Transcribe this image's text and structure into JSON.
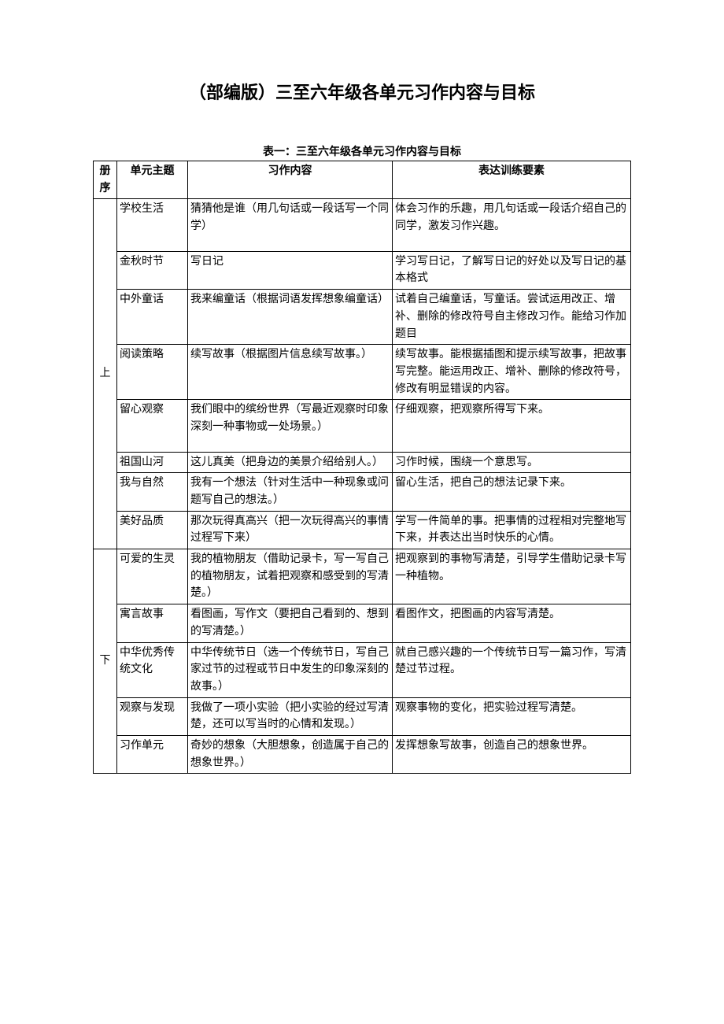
{
  "title": "（部编版）三至六年级各单元习作内容与目标",
  "subtitle": "表一：三至六年级各单元习作内容与目标",
  "headers": {
    "volume": "册序",
    "theme": "单元主题",
    "content": "习作内容",
    "element": "表达训练要素"
  },
  "table_style": {
    "border_color": "#000000",
    "background_color": "#ffffff",
    "text_color": "#000000",
    "title_fontsize": 22,
    "subtitle_fontsize": 14,
    "cell_fontsize": 14,
    "line_height": 1.55,
    "col_widths": {
      "volume": 30,
      "theme": 90,
      "content": 260
    }
  },
  "volumes": [
    {
      "label": "上",
      "rows": [
        {
          "theme": "学校生活",
          "content": "猜猜他是谁（用几句话或一段话写一个同学）",
          "element": "体会习作的乐趣，用几句话或一段话介绍自己的同学，激发习作兴趣。",
          "spacer": true
        },
        {
          "theme": "金秋时节",
          "content": "写日记",
          "element": "学习写日记，了解写日记的好处以及写日记的基本格式"
        },
        {
          "theme": "中外童话",
          "content": "我来编童话（根据词语发挥想象编童话）",
          "element": "试着自己编童话，写童话。尝试运用改正、增补、删除的修改符号自主修改习作。能给习作加题目",
          "spacer": true
        },
        {
          "theme": "阅读策略",
          "content": "续写故事（根据图片信息续写故事。）",
          "element": "续写故事。能根据插图和提示续写故事，把故事写完整。能运用改正、增补、删除的修改符号，修改有明显错误的内容。",
          "spacer": true
        },
        {
          "theme": "留心观察",
          "content": "我们眼中的缤纷世界（写最近观察时印象深刻一种事物或一处场景。）",
          "element": "仔细观察，把观察所得写下来。",
          "spacer": true
        },
        {
          "theme": "祖国山河",
          "content": "这儿真美（把身边的美景介绍给别人。）",
          "element": "习作时候，围绕一个意思写。"
        },
        {
          "theme": "我与自然",
          "content": "我有一个想法（针对生活中一种现象或问题写自己的想法。）",
          "element": "留心生活，把自己的想法记录下来。"
        },
        {
          "theme": "美好品质",
          "content": "那次玩得真高兴（把一次玩得高兴的事情过程写下来）",
          "element": "学写一件简单的事。把事情的过程相对完整地写下来，并表达出当时快乐的心情。"
        }
      ]
    },
    {
      "label": "下",
      "rows": [
        {
          "theme": "可爱的生灵",
          "content": "我的植物朋友（借助记录卡，写一写自己的植物朋友，试着把观察和感受到的写清楚。）",
          "element": "把观察到的事物写清楚，引导学生借助记录卡写一种植物。"
        },
        {
          "theme": "寓言故事",
          "content": "看图画，写作文（要把自己看到的、想到的写清楚。）",
          "element": "看图作文，把图画的内容写清楚。"
        },
        {
          "theme": "中华优秀传统文化",
          "content": "中华传统节日（选一个传统节日，写自己家过节的过程或节日中发生的印象深刻的故事。）",
          "element": "就自己感兴趣的一个传统节日写一篇习作，写清楚过节过程。"
        },
        {
          "theme": "观察与发现",
          "content": "我做了一项小实验（把小实验的经过写清楚，还可以写当时的心情和发现。）",
          "element": "观察事物的变化，把实验过程写清楚。"
        },
        {
          "theme": "习作单元",
          "content": "奇妙的想象（大胆想象，创造属于自己的想象世界。）",
          "element": "发挥想象写故事，创造自己的想象世界。"
        }
      ]
    }
  ]
}
